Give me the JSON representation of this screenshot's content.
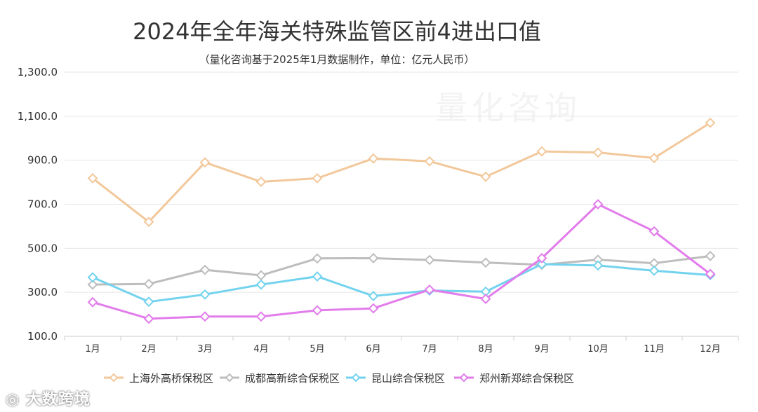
{
  "chart_data": {
    "type": "line",
    "title": "2024年全年海关特殊监管区前4进出口值",
    "subtitle": "（量化咨询基于2025年1月数据制作，单位：亿元人民币）",
    "categories": [
      "1月",
      "2月",
      "3月",
      "4月",
      "5月",
      "6月",
      "7月",
      "8月",
      "9月",
      "10月",
      "11月",
      "12月"
    ],
    "ylim": [
      100,
      1300
    ],
    "yticks": [
      "100.0",
      "300.0",
      "500.0",
      "700.0",
      "900.0",
      "1,100.0",
      "1,300.0"
    ],
    "ytick_values": [
      100,
      300,
      500,
      700,
      900,
      1100,
      1300
    ],
    "legend_position": "bottom",
    "series": [
      {
        "name": "上海外高桥保税区",
        "color": "#F2C89B",
        "values": [
          818,
          620,
          890,
          802,
          818,
          908,
          895,
          825,
          940,
          935,
          910,
          1070
        ]
      },
      {
        "name": "成都高新综合保税区",
        "color": "#BDBDBD",
        "values": [
          335,
          338,
          402,
          377,
          454,
          455,
          447,
          435,
          425,
          448,
          432,
          465
        ]
      },
      {
        "name": "昆山综合保税区",
        "color": "#73D3EE",
        "values": [
          368,
          257,
          290,
          335,
          372,
          283,
          308,
          303,
          428,
          422,
          398,
          378
        ]
      },
      {
        "name": "郑州新郑综合保税区",
        "color": "#E27CEB",
        "values": [
          255,
          180,
          190,
          190,
          218,
          227,
          312,
          270,
          455,
          700,
          577,
          383
        ]
      }
    ]
  },
  "watermark": {
    "logo_text": "量化咨询",
    "corner_text": "大数跨境"
  }
}
